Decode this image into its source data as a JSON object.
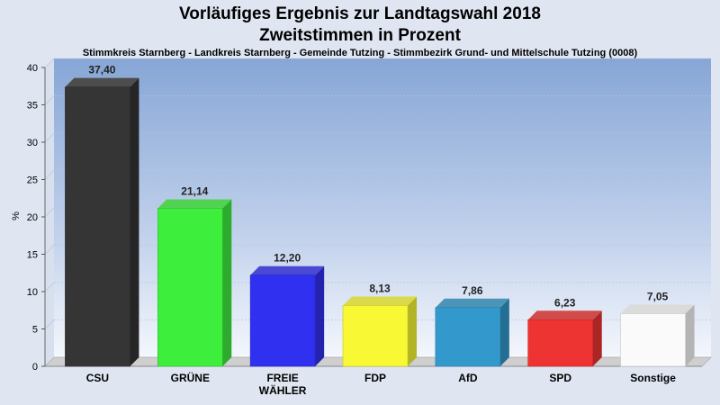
{
  "header": {
    "title_line1": "Vorläufiges Ergebnis zur Landtagswahl 2018",
    "title_line2": "Zweitstimmen in Prozent",
    "subtitle": "Stimmkreis Starnberg - Landkreis Starnberg - Gemeinde Tutzing - Stimmbezirk Grund- und Mittelschule Tutzing (0008)"
  },
  "chart_data": {
    "type": "bar",
    "title": "Vorläufiges Ergebnis zur Landtagswahl 2018 Zweitstimmen in Prozent",
    "ylabel": "%",
    "xlabel": "",
    "ylim": [
      0,
      40
    ],
    "yticks": [
      0,
      5,
      10,
      15,
      20,
      25,
      30,
      35,
      40
    ],
    "grid": true,
    "categories": [
      [
        "CSU"
      ],
      [
        "GRÜNE"
      ],
      [
        "FREIE",
        "WÄHLER"
      ],
      [
        "FDP"
      ],
      [
        "AfD"
      ],
      [
        "SPD"
      ],
      [
        "Sonstige"
      ]
    ],
    "values": [
      37.4,
      21.14,
      12.2,
      8.13,
      7.86,
      6.23,
      7.05
    ],
    "labels": [
      "37,40",
      "21,14",
      "12,20",
      "8,13",
      "7,86",
      "6,23",
      "7,05"
    ],
    "colors": [
      "#353535",
      "#3dee3d",
      "#3030f0",
      "#f8f835",
      "#3399cc",
      "#ee3333",
      "#fafafa"
    ]
  }
}
